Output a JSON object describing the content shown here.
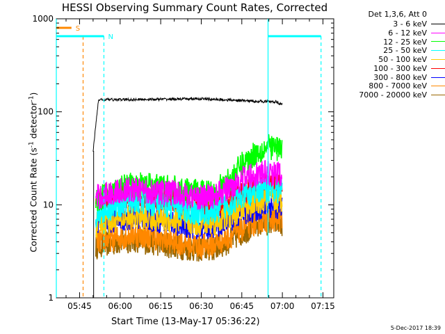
{
  "chart_data": {
    "type": "line",
    "title": "HESSI Observing Summary Count Rates, Corrected",
    "xlabel": "Start Time (13-May-17 05:36:22)",
    "ylabel_main": "Corrected Count Rate (s",
    "ylabel_sup1": "-1",
    "ylabel_mid": " detector",
    "ylabel_sup2": "-1",
    "ylabel_end": ")",
    "yscale": "log",
    "ylim": [
      1,
      1000
    ],
    "xlim_minutes": [
      36.4,
      139
    ],
    "x_ticks": [
      {
        "label": "05:45",
        "minute": 45
      },
      {
        "label": "06:00",
        "minute": 60
      },
      {
        "label": "06:15",
        "minute": 75
      },
      {
        "label": "06:30",
        "minute": 90
      },
      {
        "label": "06:45",
        "minute": 105
      },
      {
        "label": "07:00",
        "minute": 120
      },
      {
        "label": "07:15",
        "minute": 135
      }
    ],
    "y_ticks": [
      {
        "label": "1",
        "value": 1
      },
      {
        "label": "10",
        "value": 10
      },
      {
        "label": "100",
        "value": 100
      },
      {
        "label": "1000",
        "value": 1000
      }
    ],
    "legend_header": "Det 1,3,6, Att 0",
    "series": [
      {
        "name": "3 - 6 keV",
        "color": "#000000",
        "x": [
          50,
          52,
          60,
          70,
          80,
          90,
          100,
          110,
          118,
          120
        ],
        "y": [
          38,
          135,
          135,
          136,
          137,
          138,
          134,
          130,
          128,
          118
        ]
      },
      {
        "name": "6 - 12 keV",
        "color": "#ff00ff",
        "x": [
          51,
          55,
          60,
          65,
          70,
          75,
          80,
          85,
          90,
          95,
          100,
          105,
          110,
          115,
          120
        ],
        "y": [
          12,
          13,
          14,
          14.5,
          14,
          13.5,
          13.5,
          12.5,
          12,
          12.5,
          15,
          19,
          21,
          22,
          21
        ]
      },
      {
        "name": "12 - 25 keV",
        "color": "#00ff00",
        "x": [
          51,
          55,
          60,
          65,
          70,
          75,
          80,
          85,
          90,
          95,
          100,
          105,
          110,
          115,
          120
        ],
        "y": [
          11,
          13,
          15,
          16.5,
          16,
          15.5,
          15,
          14,
          13.5,
          14,
          18,
          27,
          36,
          42,
          40
        ]
      },
      {
        "name": "25 - 50 keV",
        "color": "#00ffff",
        "x": [
          51,
          55,
          60,
          65,
          70,
          75,
          80,
          85,
          90,
          95,
          100,
          105,
          110,
          115,
          120
        ],
        "y": [
          8,
          9,
          10,
          11,
          10.5,
          10,
          9.5,
          8.5,
          8,
          8.5,
          10,
          12,
          14,
          15,
          14
        ]
      },
      {
        "name": "50 - 100 keV",
        "color": "#ffcc00",
        "x": [
          51,
          55,
          60,
          65,
          70,
          75,
          80,
          85,
          90,
          95,
          100,
          105,
          110,
          115,
          120
        ],
        "y": [
          6,
          6.5,
          7,
          7.5,
          7.2,
          7,
          6.8,
          6.5,
          6.3,
          6.5,
          7.5,
          9,
          10.5,
          11.5,
          11
        ]
      },
      {
        "name": "100 - 300 keV",
        "color": "#ff0000",
        "x": [
          51,
          55,
          60,
          65,
          70,
          75,
          80,
          85,
          90,
          95,
          100,
          105,
          110,
          115,
          120
        ],
        "y": [
          10.5,
          11,
          12,
          12.5,
          12,
          11.5,
          11,
          10,
          9.5,
          9.5,
          11,
          13,
          15,
          16,
          16
        ]
      },
      {
        "name": "300 - 800 keV",
        "color": "#0000ff",
        "x": [
          51,
          55,
          60,
          65,
          70,
          75,
          80,
          85,
          90,
          95,
          100,
          105,
          110,
          115,
          120
        ],
        "y": [
          6,
          6.5,
          7,
          7.5,
          7.2,
          6.8,
          6.5,
          6,
          5.8,
          6,
          7,
          8,
          9,
          10,
          9.5
        ]
      },
      {
        "name": "800 - 7000 keV",
        "color": "#ff8800",
        "x": [
          51,
          55,
          60,
          65,
          70,
          75,
          80,
          85,
          90,
          95,
          100,
          105,
          110,
          115,
          120
        ],
        "y": [
          4,
          4.2,
          4.5,
          4.8,
          4.6,
          4.3,
          4,
          3.8,
          3.6,
          3.8,
          4.5,
          5.5,
          6.5,
          7,
          7
        ]
      },
      {
        "name": "7000 - 20000 keV",
        "color": "#996600",
        "x": [
          51,
          55,
          60,
          65,
          70,
          75,
          80,
          85,
          90,
          95,
          100,
          105,
          110,
          115,
          120
        ],
        "y": [
          3.6,
          3.8,
          4,
          4.2,
          4,
          3.8,
          3.6,
          3.4,
          3.3,
          3.4,
          4,
          5,
          6,
          6.5,
          6.3
        ]
      }
    ],
    "markers": [
      {
        "label": "S",
        "color": "#ff8800",
        "x_start": 36.4,
        "x_end": 42
      },
      {
        "label": "N",
        "color": "#00ffff",
        "x_start": 36.4,
        "x_end": 54
      }
    ],
    "vlines": [
      {
        "minute": 46.3,
        "color": "#ff8800",
        "style": "dashed",
        "from_value": 1,
        "to_value": 650
      },
      {
        "minute": 54,
        "color": "#00ffff",
        "style": "dashed",
        "from_value": 1,
        "to_value": 650
      },
      {
        "minute": 36.4,
        "color": "#00ffff",
        "style": "solid",
        "from_value": 1,
        "to_value": 1000
      },
      {
        "minute": 114.7,
        "color": "#00ffff",
        "style": "solid",
        "from_value": 1,
        "to_value": 1000
      },
      {
        "minute": 134.3,
        "color": "#00ffff",
        "style": "dashed",
        "from_value": 1,
        "to_value": 650
      }
    ],
    "hbars": [
      {
        "color": "#00ffff",
        "x_start": 114.7,
        "x_end": 134.3,
        "value": 650
      }
    ],
    "footer": "5-Dec-2017 18:39"
  }
}
